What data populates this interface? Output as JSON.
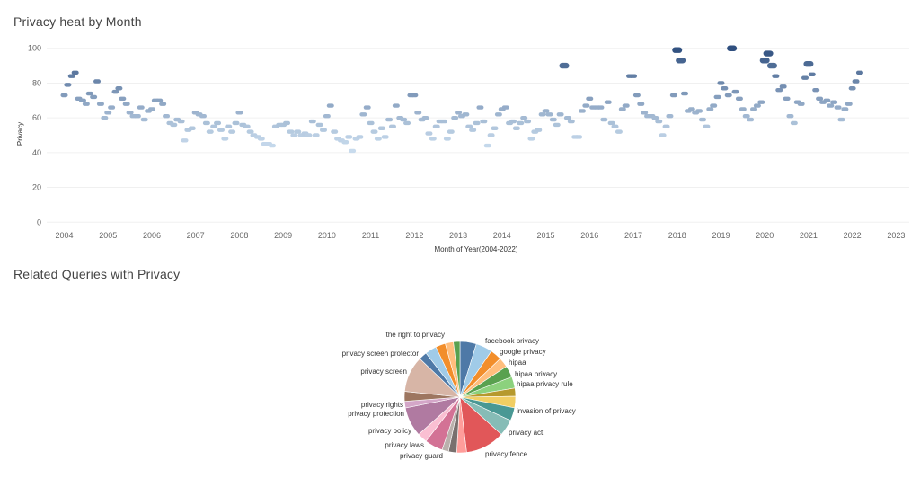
{
  "dashboard": {
    "scatter_title": "Privacy heat by Month",
    "pie_title": "Related Queries with Privacy"
  },
  "chart_data": [
    {
      "type": "scatter",
      "title": "Privacy heat by Month",
      "xlabel": "Month of Year(2004-2022)",
      "ylabel": "Privacy",
      "x_ticks": [
        "2004",
        "2005",
        "2006",
        "2007",
        "2008",
        "2009",
        "2010",
        "2011",
        "2012",
        "2013",
        "2014",
        "2015",
        "2016",
        "2017",
        "2018",
        "2019",
        "2020",
        "2021",
        "2022",
        "2023"
      ],
      "y_ticks": [
        0,
        20,
        40,
        60,
        80,
        100
      ],
      "xlim": [
        2003.6,
        2023.3
      ],
      "ylim": [
        -4,
        104
      ],
      "grid": true,
      "color_scale": {
        "low": "#c9dcee",
        "high": "#2f4f7f",
        "min": 40,
        "max": 100
      },
      "points": [
        [
          2004.0,
          73
        ],
        [
          2004.08,
          79
        ],
        [
          2004.17,
          84
        ],
        [
          2004.25,
          86
        ],
        [
          2004.33,
          71
        ],
        [
          2004.42,
          70
        ],
        [
          2004.5,
          68
        ],
        [
          2004.58,
          74
        ],
        [
          2004.67,
          72
        ],
        [
          2004.75,
          81
        ],
        [
          2004.83,
          68
        ],
        [
          2004.92,
          60
        ],
        [
          2005.0,
          63
        ],
        [
          2005.08,
          66
        ],
        [
          2005.17,
          75
        ],
        [
          2005.25,
          77
        ],
        [
          2005.33,
          71
        ],
        [
          2005.42,
          68
        ],
        [
          2005.5,
          63
        ],
        [
          2005.58,
          61
        ],
        [
          2005.67,
          61
        ],
        [
          2005.75,
          66
        ],
        [
          2005.83,
          59
        ],
        [
          2005.92,
          64
        ],
        [
          2006.0,
          65
        ],
        [
          2006.08,
          70
        ],
        [
          2006.17,
          70
        ],
        [
          2006.25,
          68
        ],
        [
          2006.33,
          61
        ],
        [
          2006.42,
          57
        ],
        [
          2006.5,
          56
        ],
        [
          2006.58,
          59
        ],
        [
          2006.67,
          58
        ],
        [
          2006.75,
          47
        ],
        [
          2006.83,
          53
        ],
        [
          2006.92,
          54
        ],
        [
          2007.0,
          63
        ],
        [
          2007.08,
          62
        ],
        [
          2007.17,
          61
        ],
        [
          2007.25,
          57
        ],
        [
          2007.33,
          52
        ],
        [
          2007.42,
          55
        ],
        [
          2007.5,
          57
        ],
        [
          2007.58,
          53
        ],
        [
          2007.67,
          48
        ],
        [
          2007.75,
          55
        ],
        [
          2007.83,
          52
        ],
        [
          2007.92,
          57
        ],
        [
          2008.0,
          63
        ],
        [
          2008.08,
          56
        ],
        [
          2008.17,
          55
        ],
        [
          2008.25,
          52
        ],
        [
          2008.33,
          50
        ],
        [
          2008.42,
          49
        ],
        [
          2008.5,
          48
        ],
        [
          2008.58,
          45
        ],
        [
          2008.67,
          45
        ],
        [
          2008.75,
          44
        ],
        [
          2008.83,
          55
        ],
        [
          2008.92,
          56
        ],
        [
          2009.0,
          56
        ],
        [
          2009.08,
          57
        ],
        [
          2009.17,
          52
        ],
        [
          2009.25,
          50
        ],
        [
          2009.33,
          52
        ],
        [
          2009.42,
          50
        ],
        [
          2009.5,
          51
        ],
        [
          2009.58,
          50
        ],
        [
          2009.67,
          58
        ],
        [
          2009.75,
          50
        ],
        [
          2009.83,
          56
        ],
        [
          2009.92,
          53
        ],
        [
          2010.0,
          61
        ],
        [
          2010.08,
          67
        ],
        [
          2010.17,
          52
        ],
        [
          2010.25,
          48
        ],
        [
          2010.33,
          47
        ],
        [
          2010.42,
          46
        ],
        [
          2010.5,
          49
        ],
        [
          2010.58,
          41
        ],
        [
          2010.67,
          48
        ],
        [
          2010.75,
          49
        ],
        [
          2010.83,
          62
        ],
        [
          2010.92,
          66
        ],
        [
          2011.0,
          57
        ],
        [
          2011.08,
          52
        ],
        [
          2011.17,
          48
        ],
        [
          2011.25,
          54
        ],
        [
          2011.33,
          49
        ],
        [
          2011.42,
          59
        ],
        [
          2011.5,
          55
        ],
        [
          2011.58,
          67
        ],
        [
          2011.67,
          60
        ],
        [
          2011.75,
          59
        ],
        [
          2011.83,
          57
        ],
        [
          2011.92,
          73
        ],
        [
          2012.0,
          73
        ],
        [
          2012.08,
          63
        ],
        [
          2012.17,
          59
        ],
        [
          2012.25,
          60
        ],
        [
          2012.33,
          51
        ],
        [
          2012.42,
          48
        ],
        [
          2012.5,
          55
        ],
        [
          2012.58,
          58
        ],
        [
          2012.67,
          58
        ],
        [
          2012.75,
          48
        ],
        [
          2012.83,
          52
        ],
        [
          2012.92,
          60
        ],
        [
          2013.0,
          63
        ],
        [
          2013.08,
          61
        ],
        [
          2013.17,
          62
        ],
        [
          2013.25,
          55
        ],
        [
          2013.33,
          53
        ],
        [
          2013.42,
          57
        ],
        [
          2013.5,
          66
        ],
        [
          2013.58,
          58
        ],
        [
          2013.67,
          44
        ],
        [
          2013.75,
          50
        ],
        [
          2013.83,
          54
        ],
        [
          2013.92,
          62
        ],
        [
          2014.0,
          65
        ],
        [
          2014.08,
          66
        ],
        [
          2014.17,
          57
        ],
        [
          2014.25,
          58
        ],
        [
          2014.33,
          54
        ],
        [
          2014.42,
          57
        ],
        [
          2014.5,
          60
        ],
        [
          2014.58,
          58
        ],
        [
          2014.67,
          48
        ],
        [
          2014.75,
          52
        ],
        [
          2014.83,
          53
        ],
        [
          2014.92,
          62
        ],
        [
          2015.0,
          64
        ],
        [
          2015.08,
          62
        ],
        [
          2015.17,
          59
        ],
        [
          2015.25,
          56
        ],
        [
          2015.33,
          62
        ],
        [
          2015.42,
          90
        ],
        [
          2015.5,
          60
        ],
        [
          2015.58,
          58
        ],
        [
          2015.67,
          49
        ],
        [
          2015.75,
          49
        ],
        [
          2015.83,
          64
        ],
        [
          2015.92,
          67
        ],
        [
          2016.0,
          71
        ],
        [
          2016.08,
          66
        ],
        [
          2016.17,
          66
        ],
        [
          2016.25,
          66
        ],
        [
          2016.33,
          59
        ],
        [
          2016.42,
          69
        ],
        [
          2016.5,
          57
        ],
        [
          2016.58,
          55
        ],
        [
          2016.67,
          52
        ],
        [
          2016.75,
          65
        ],
        [
          2016.83,
          67
        ],
        [
          2016.92,
          84
        ],
        [
          2017.0,
          84
        ],
        [
          2017.08,
          73
        ],
        [
          2017.17,
          68
        ],
        [
          2017.25,
          63
        ],
        [
          2017.33,
          61
        ],
        [
          2017.42,
          61
        ],
        [
          2017.5,
          60
        ],
        [
          2017.58,
          58
        ],
        [
          2017.67,
          50
        ],
        [
          2017.75,
          55
        ],
        [
          2017.83,
          61
        ],
        [
          2017.92,
          73
        ],
        [
          2018.0,
          99
        ],
        [
          2018.08,
          93
        ],
        [
          2018.17,
          74
        ],
        [
          2018.25,
          64
        ],
        [
          2018.33,
          65
        ],
        [
          2018.42,
          63
        ],
        [
          2018.5,
          64
        ],
        [
          2018.58,
          59
        ],
        [
          2018.67,
          55
        ],
        [
          2018.75,
          65
        ],
        [
          2018.83,
          67
        ],
        [
          2018.92,
          72
        ],
        [
          2019.0,
          80
        ],
        [
          2019.08,
          77
        ],
        [
          2019.17,
          73
        ],
        [
          2019.25,
          100
        ],
        [
          2019.33,
          75
        ],
        [
          2019.42,
          71
        ],
        [
          2019.5,
          65
        ],
        [
          2019.58,
          61
        ],
        [
          2019.67,
          59
        ],
        [
          2019.75,
          65
        ],
        [
          2019.83,
          67
        ],
        [
          2019.92,
          69
        ],
        [
          2020.0,
          93
        ],
        [
          2020.08,
          97
        ],
        [
          2020.17,
          90
        ],
        [
          2020.25,
          84
        ],
        [
          2020.33,
          76
        ],
        [
          2020.42,
          78
        ],
        [
          2020.5,
          71
        ],
        [
          2020.58,
          61
        ],
        [
          2020.67,
          57
        ],
        [
          2020.75,
          69
        ],
        [
          2020.83,
          68
        ],
        [
          2020.92,
          83
        ],
        [
          2021.0,
          91
        ],
        [
          2021.08,
          85
        ],
        [
          2021.17,
          76
        ],
        [
          2021.25,
          71
        ],
        [
          2021.33,
          69
        ],
        [
          2021.42,
          70
        ],
        [
          2021.5,
          67
        ],
        [
          2021.58,
          69
        ],
        [
          2021.67,
          66
        ],
        [
          2021.75,
          59
        ],
        [
          2021.83,
          65
        ],
        [
          2021.92,
          68
        ],
        [
          2022.0,
          77
        ],
        [
          2022.08,
          81
        ],
        [
          2022.17,
          86
        ]
      ]
    },
    {
      "type": "pie",
      "title": "Related Queries with Privacy",
      "slices": [
        {
          "label": "facebook privacy",
          "value": 5.0,
          "color": "#4e79a7"
        },
        {
          "label": "google privacy",
          "value": 5.0,
          "color": "#a0cbe8"
        },
        {
          "label": "hipaa",
          "value": 3.5,
          "color": "#f28e2b"
        },
        {
          "label": "",
          "value": 3.0,
          "color": "#ffbe7d"
        },
        {
          "label": "hipaa privacy",
          "value": 3.5,
          "color": "#59a14f"
        },
        {
          "label": "hipaa privacy rule",
          "value": 3.5,
          "color": "#8cd17d"
        },
        {
          "label": "",
          "value": 2.5,
          "color": "#b6992d"
        },
        {
          "label": "invasion of privacy",
          "value": 3.5,
          "color": "#f1ce63"
        },
        {
          "label": "",
          "value": 4.0,
          "color": "#499894"
        },
        {
          "label": "privacy act",
          "value": 5.0,
          "color": "#86bcb6"
        },
        {
          "label": "privacy fence",
          "value": 12.0,
          "color": "#e15759"
        },
        {
          "label": "",
          "value": 3.0,
          "color": "#ff9d9a"
        },
        {
          "label": "privacy guard",
          "value": 2.5,
          "color": "#79706e"
        },
        {
          "label": "",
          "value": 2.0,
          "color": "#bab0ac"
        },
        {
          "label": "privacy laws",
          "value": 5.5,
          "color": "#d37295"
        },
        {
          "label": "",
          "value": 3.0,
          "color": "#fabfd2"
        },
        {
          "label": "privacy policy",
          "value": 9.0,
          "color": "#b07aa1"
        },
        {
          "label": "privacy protection",
          "value": 2.0,
          "color": "#d4a6c8"
        },
        {
          "label": "privacy rights",
          "value": 3.0,
          "color": "#9d7660"
        },
        {
          "label": "privacy screen",
          "value": 11.0,
          "color": "#d7b5a6"
        },
        {
          "label": "privacy screen protector",
          "value": 2.5,
          "color": "#4e79a7"
        },
        {
          "label": "",
          "value": 3.5,
          "color": "#a0cbe8"
        },
        {
          "label": "the right to privacy",
          "value": 3.0,
          "color": "#f28e2b"
        },
        {
          "label": "",
          "value": 2.5,
          "color": "#ffbe7d"
        },
        {
          "label": "",
          "value": 2.0,
          "color": "#59a14f"
        }
      ]
    }
  ]
}
